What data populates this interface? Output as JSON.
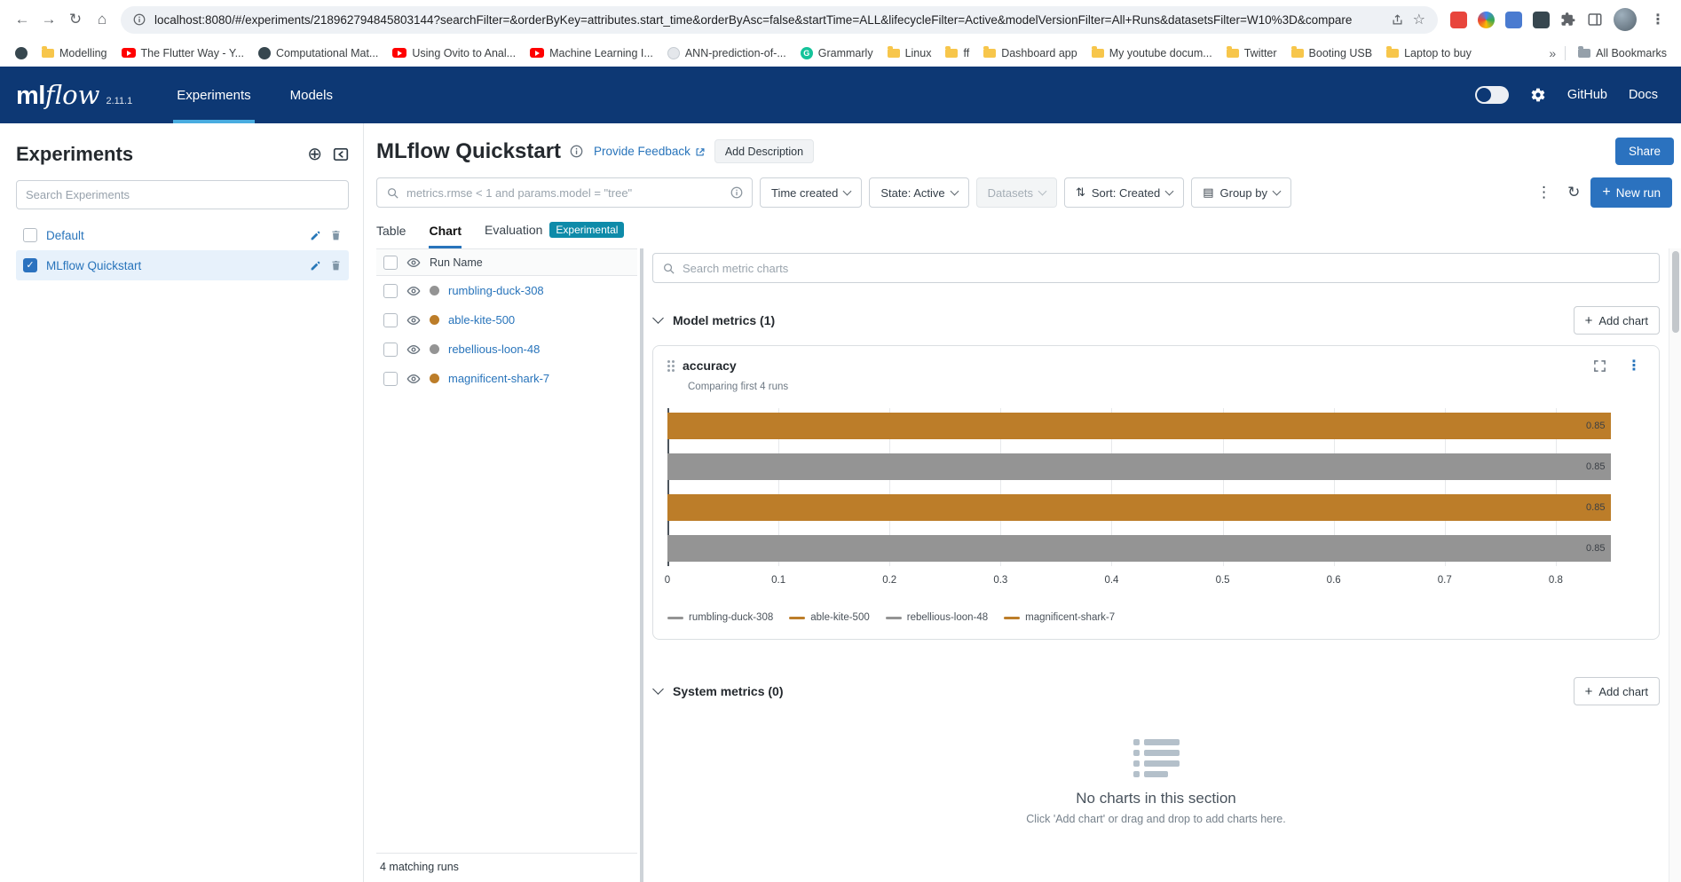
{
  "colors": {
    "header_bg": "#0d3874",
    "accent_blue": "#2b72bf",
    "link_blue": "#2874bb",
    "experimental_badge": "#0e8ba9",
    "bar_orange": "#bc7d29",
    "bar_gray": "#949494",
    "selected_row_bg": "#e7f1fb"
  },
  "browser": {
    "url": "localhost:8080/#/experiments/218962794845803144?searchFilter=&orderByKey=attributes.start_time&orderByAsc=false&startTime=ALL&lifecycleFilter=Active&modelVersionFilter=All+Runs&datasetsFilter=W10%3D&compare",
    "bookmarks": [
      {
        "label": "",
        "icon": "site-dark"
      },
      {
        "label": "Modelling",
        "icon": "folder"
      },
      {
        "label": "The Flutter Way - Y...",
        "icon": "youtube"
      },
      {
        "label": "Computational Mat...",
        "icon": "site-dark"
      },
      {
        "label": "Using Ovito to Anal...",
        "icon": "youtube"
      },
      {
        "label": "Machine Learning I...",
        "icon": "youtube"
      },
      {
        "label": "ANN-prediction-of-...",
        "icon": "site-light"
      },
      {
        "label": "Grammarly",
        "icon": "grammarly"
      },
      {
        "label": "Linux",
        "icon": "folder"
      },
      {
        "label": "ff",
        "icon": "folder"
      },
      {
        "label": "Dashboard app",
        "icon": "folder"
      },
      {
        "label": "My youtube docum...",
        "icon": "folder"
      },
      {
        "label": "Twitter",
        "icon": "folder"
      },
      {
        "label": "Booting USB",
        "icon": "folder"
      },
      {
        "label": "Laptop to buy",
        "icon": "folder"
      }
    ],
    "overflow_chevron": "»",
    "all_bookmarks": "All Bookmarks"
  },
  "header": {
    "logo_ml": "ml",
    "logo_flow": "flow",
    "version": "2.11.1",
    "nav": [
      {
        "label": "Experiments",
        "active": true
      },
      {
        "label": "Models",
        "active": false
      }
    ],
    "links": [
      {
        "label": "GitHub"
      },
      {
        "label": "Docs"
      }
    ]
  },
  "sidebar": {
    "title": "Experiments",
    "search_placeholder": "Search Experiments",
    "items": [
      {
        "label": "Default",
        "checked": false,
        "selected": false
      },
      {
        "label": "MLflow Quickstart",
        "checked": true,
        "selected": true
      }
    ]
  },
  "main": {
    "title": "MLflow Quickstart",
    "feedback_link": "Provide Feedback",
    "add_description_button": "Add Description",
    "share_button": "Share",
    "search_placeholder": "metrics.rmse < 1 and params.model = \"tree\"",
    "filters": [
      {
        "label": "Time created",
        "icon": null,
        "disabled": false
      },
      {
        "label": "State: Active",
        "icon": null,
        "disabled": false
      },
      {
        "label": "Datasets",
        "icon": null,
        "disabled": true
      },
      {
        "label": "Sort: Created",
        "icon": "sort",
        "disabled": false
      },
      {
        "label": "Group by",
        "icon": "group",
        "disabled": false
      }
    ],
    "new_run_button": "New run",
    "tabs": [
      {
        "label": "Table",
        "active": false
      },
      {
        "label": "Chart",
        "active": true
      },
      {
        "label": "Evaluation",
        "active": false,
        "badge": "Experimental"
      }
    ]
  },
  "runs": {
    "header": "Run Name",
    "rows": [
      {
        "name": "rumbling-duck-308",
        "color": "#949494"
      },
      {
        "name": "able-kite-500",
        "color": "#bc7d29"
      },
      {
        "name": "rebellious-loon-48",
        "color": "#949494"
      },
      {
        "name": "magnificent-shark-7",
        "color": "#bc7d29"
      }
    ],
    "footer": "4 matching runs"
  },
  "charts_panel": {
    "search_placeholder": "Search metric charts",
    "model_section": {
      "title": "Model metrics (1)",
      "add_chart_button": "Add chart"
    },
    "system_section": {
      "title": "System metrics (0)",
      "add_chart_button": "Add chart"
    },
    "empty_state": {
      "title": "No charts in this section",
      "subtitle": "Click 'Add chart' or drag and drop to add charts here."
    }
  },
  "chart_data": {
    "type": "bar",
    "orientation": "horizontal",
    "title": "accuracy",
    "subtitle": "Comparing first 4 runs",
    "categories_top_to_bottom": [
      "magnificent-shark-7",
      "rebellious-loon-48",
      "able-kite-500",
      "rumbling-duck-308"
    ],
    "values": [
      0.85,
      0.85,
      0.85,
      0.85
    ],
    "value_labels": [
      "0.85",
      "0.85",
      "0.85",
      "0.85"
    ],
    "bar_colors": [
      "#bc7d29",
      "#949494",
      "#bc7d29",
      "#949494"
    ],
    "xticks": [
      "0",
      "0.1",
      "0.2",
      "0.3",
      "0.4",
      "0.5",
      "0.6",
      "0.7",
      "0.8"
    ],
    "x_max": 0.88,
    "xlim": [
      0,
      0.88
    ],
    "grid": true,
    "legend_position": "bottom",
    "legend": [
      {
        "name": "rumbling-duck-308",
        "color": "#949494"
      },
      {
        "name": "able-kite-500",
        "color": "#bc7d29"
      },
      {
        "name": "rebellious-loon-48",
        "color": "#949494"
      },
      {
        "name": "magnificent-shark-7",
        "color": "#bc7d29"
      }
    ]
  }
}
